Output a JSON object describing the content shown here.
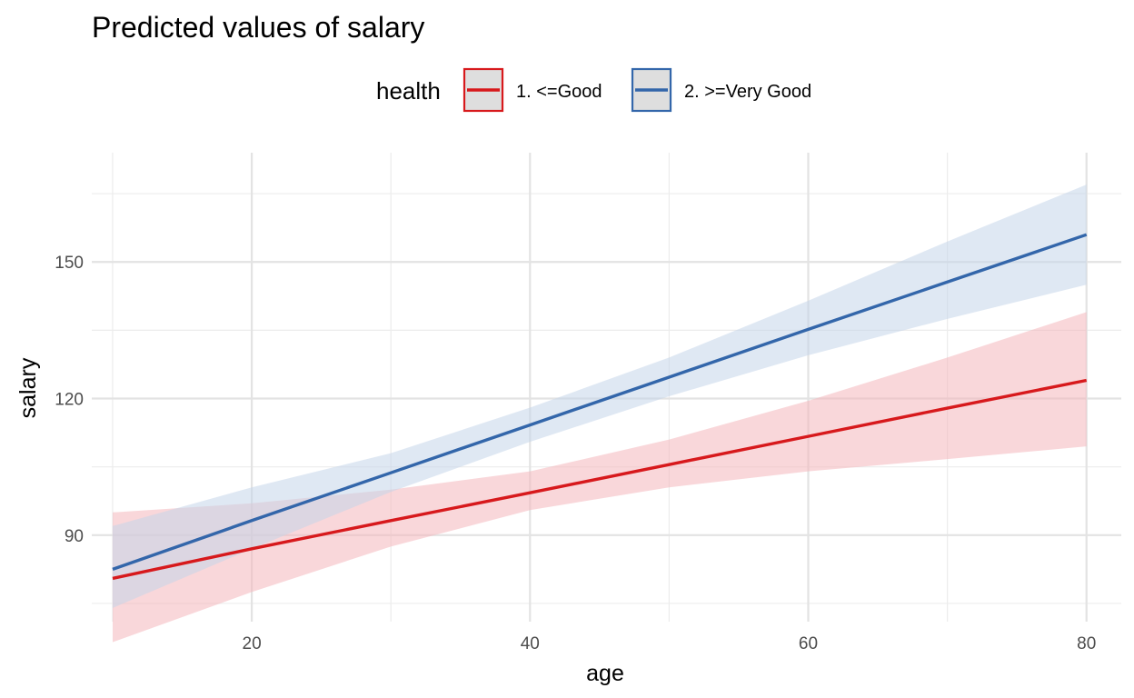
{
  "chart_data": {
    "type": "line",
    "title": "Predicted values of salary",
    "xlabel": "age",
    "ylabel": "salary",
    "xlim": [
      8.5,
      82.5
    ],
    "ylim": [
      71,
      174
    ],
    "x_ticks": [
      20,
      40,
      60,
      80
    ],
    "x_tick_labels": [
      "20",
      "40",
      "60",
      "80"
    ],
    "y_ticks": [
      90,
      120,
      150
    ],
    "y_tick_labels": [
      "90",
      "120",
      "150"
    ],
    "grid": true,
    "legend": {
      "title": "health",
      "position": "top"
    },
    "series": [
      {
        "name": "1. <=Good",
        "color": "#d7191c",
        "band_color": "#f4b6bb",
        "x": [
          10,
          20,
          30,
          40,
          50,
          60,
          70,
          80
        ],
        "y": [
          80.5,
          87,
          93.2,
          99.3,
          105.5,
          111.7,
          117.9,
          124
        ],
        "lower": [
          66.5,
          77.5,
          87.5,
          95.5,
          100.5,
          104,
          106.7,
          109.5
        ],
        "upper": [
          95,
          97,
          100,
          104,
          111,
          119.5,
          129,
          139
        ]
      },
      {
        "name": "2. >=Very Good",
        "color": "#3366aa",
        "band_color": "#c5d5ea",
        "x": [
          10,
          20,
          30,
          40,
          50,
          60,
          70,
          80
        ],
        "y": [
          82.5,
          93.2,
          103.7,
          114.2,
          124.7,
          135.2,
          145.6,
          156
        ],
        "lower": [
          74,
          87,
          99.5,
          110.5,
          120.5,
          129.5,
          137.5,
          145
        ],
        "upper": [
          92,
          100.5,
          108,
          118,
          129,
          141.5,
          154.5,
          167
        ]
      }
    ]
  }
}
